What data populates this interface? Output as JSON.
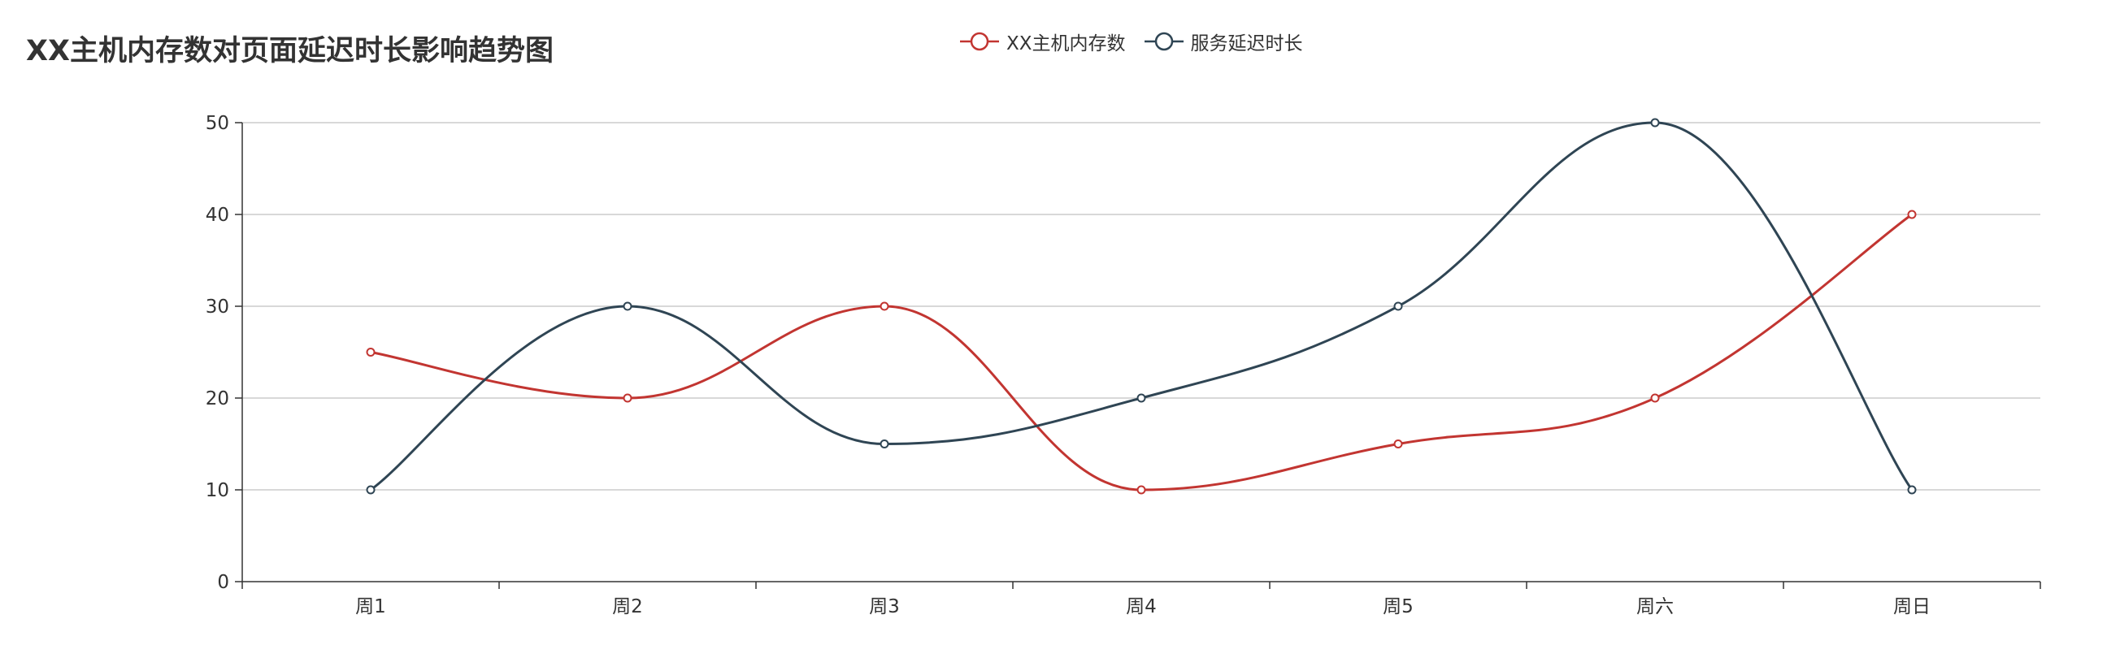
{
  "chart_data": {
    "type": "line",
    "title": "XX主机内存数对页面延迟时长影响趋势图",
    "categories": [
      "周1",
      "周2",
      "周3",
      "周4",
      "周5",
      "周六",
      "周日"
    ],
    "series": [
      {
        "name": "XX主机内存数",
        "values": [
          25,
          20,
          30,
          10,
          15,
          20,
          40
        ],
        "color": "#c23531"
      },
      {
        "name": "服务延迟时长",
        "values": [
          10,
          30,
          15,
          20,
          30,
          50,
          10
        ],
        "color": "#2f4554"
      }
    ],
    "ylim": [
      0,
      50
    ],
    "yticks": [
      0,
      10,
      20,
      30,
      40,
      50
    ],
    "grid": true,
    "smooth": true,
    "legend_position": "top-center"
  }
}
